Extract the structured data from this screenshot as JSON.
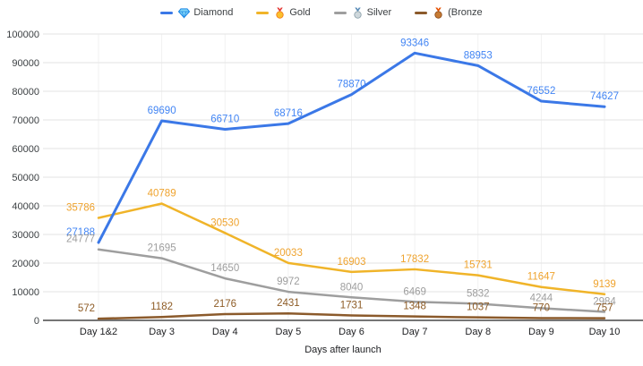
{
  "legend": {
    "items": [
      {
        "label": "Diamond",
        "icon": "diamond-icon"
      },
      {
        "label": "Gold",
        "icon": "gold-medal-icon"
      },
      {
        "label": "Silver",
        "icon": "silver-medal-icon"
      },
      {
        "label": "(Bronze",
        "icon": "bronze-medal-icon"
      }
    ]
  },
  "chart_data": {
    "type": "line",
    "categories": [
      "Day 1&2",
      "Day 3",
      "Day 4",
      "Day 5",
      "Day 6",
      "Day 7",
      "Day 8",
      "Day 9",
      "Day 10"
    ],
    "series": [
      {
        "name": "Diamond",
        "color": "#3b78e7",
        "label_color": "#4285f4",
        "values": [
          27188,
          69690,
          66710,
          68716,
          78870,
          93346,
          88953,
          76552,
          74627
        ]
      },
      {
        "name": "Gold",
        "color": "#f0b429",
        "label_color": "#efa32e",
        "values": [
          35786,
          40789,
          30530,
          20033,
          16903,
          17832,
          15731,
          11647,
          9139
        ]
      },
      {
        "name": "Silver",
        "color": "#9e9e9e",
        "label_color": "#9e9e9e",
        "values": [
          24777,
          21695,
          14650,
          9972,
          8040,
          6469,
          5832,
          4244,
          2984
        ]
      },
      {
        "name": "(Bronze",
        "color": "#8b5a2b",
        "label_color": "#8d5b25",
        "values": [
          572,
          1182,
          2176,
          2431,
          1731,
          1348,
          1037,
          770,
          757
        ]
      }
    ],
    "title": "",
    "xlabel": "Days after launch",
    "ylabel": "",
    "ylim": [
      0,
      100000
    ],
    "ytick_labels": [
      "0",
      "10000",
      "20000",
      "30000",
      "40000",
      "50000",
      "60000",
      "70000",
      "80000",
      "90000",
      "100000"
    ],
    "grid": true,
    "legend_position": "top",
    "data_labels": true,
    "axis_colors": {
      "grid_h": "#e3e3e3",
      "grid_v": "#f1f1f1",
      "baseline": "#757575",
      "tick_text": "#3c4043",
      "axis_title_text": "#202124"
    }
  }
}
